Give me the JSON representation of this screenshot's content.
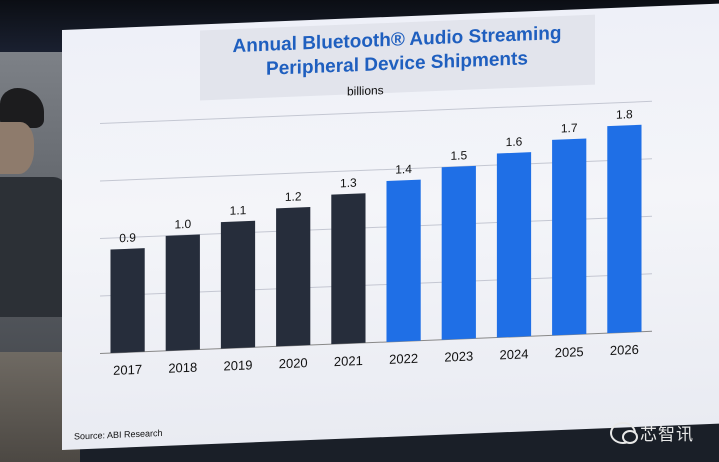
{
  "watermark_text": "芯智讯",
  "chart_data": {
    "type": "bar",
    "title_lines": [
      "Annual Bluetooth® Audio Streaming",
      "Peripheral Device Shipments"
    ],
    "unit": "billions",
    "categories": [
      "2017",
      "2018",
      "2019",
      "2020",
      "2021",
      "2022",
      "2023",
      "2024",
      "2025",
      "2026"
    ],
    "values": [
      0.9,
      1.0,
      1.1,
      1.2,
      1.3,
      1.4,
      1.5,
      1.6,
      1.7,
      1.8
    ],
    "value_labels": [
      "0.9",
      "1.0",
      "1.1",
      "1.2",
      "1.3",
      "1.4",
      "1.5",
      "1.6",
      "1.7",
      "1.8"
    ],
    "forecast_start_index": 5,
    "ylim": [
      0,
      2.0
    ],
    "grid": true,
    "source": "Source: ABI Research",
    "colors": {
      "actual": "#262d3b",
      "forecast": "#1f6fe6",
      "grid": "#c4c7d2",
      "labels": "#111111",
      "title": "#1f5fbf"
    }
  }
}
